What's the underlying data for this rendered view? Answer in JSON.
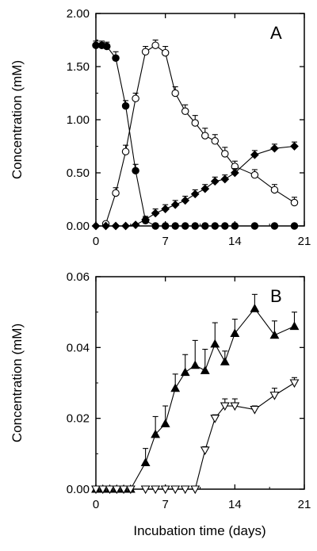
{
  "xlabel": "Incubation time (days)",
  "chart_data": [
    {
      "type": "line",
      "panel_label": "A",
      "ylabel": "Concentration (mM)",
      "xlim": [
        0,
        21
      ],
      "ylim": [
        0,
        2.0
      ],
      "x_ticks": [
        "0",
        "7",
        "14",
        "21"
      ],
      "y_ticks": [
        "0.00",
        "0.50",
        "1.00",
        "1.50",
        "2.00"
      ],
      "x_tick_values": [
        0,
        7,
        14,
        21
      ],
      "y_tick_values": [
        0,
        0.5,
        1.0,
        1.5,
        2.0
      ],
      "series": [
        {
          "marker": "filled-circle",
          "x": [
            0,
            0.6,
            1.1,
            2.0,
            3.0,
            4.0,
            5.0,
            6.0,
            7.0,
            8.0,
            9.0,
            10.0,
            11.0,
            12.0,
            13.0,
            14.0,
            16.0,
            18.0,
            20.0
          ],
          "y": [
            1.7,
            1.7,
            1.69,
            1.58,
            1.13,
            0.52,
            0.05,
            0.0,
            0.0,
            0.0,
            0.0,
            0.0,
            0.0,
            0.0,
            0.0,
            0.0,
            0.0,
            0.0,
            0.0
          ],
          "err": [
            0.04,
            0.04,
            0.04,
            0.06,
            0.05,
            0.06,
            0.03,
            0,
            0,
            0,
            0,
            0,
            0,
            0,
            0,
            0,
            0,
            0,
            0
          ]
        },
        {
          "marker": "open-circle",
          "x": [
            1.0,
            2.0,
            3.0,
            4.0,
            5.0,
            6.0,
            7.0,
            8.0,
            9.0,
            10.0,
            11.0,
            12.0,
            13.0,
            14.0,
            16.0,
            18.0,
            20.0
          ],
          "y": [
            0.02,
            0.31,
            0.7,
            1.2,
            1.64,
            1.7,
            1.63,
            1.25,
            1.08,
            0.97,
            0.85,
            0.8,
            0.68,
            0.56,
            0.48,
            0.34,
            0.22
          ],
          "err": [
            0.02,
            0.05,
            0.06,
            0.05,
            0.05,
            0.05,
            0.06,
            0.06,
            0.06,
            0.07,
            0.07,
            0.06,
            0.06,
            0.05,
            0.05,
            0.05,
            0.05
          ]
        },
        {
          "marker": "filled-diamond",
          "x": [
            0,
            1.0,
            2.0,
            3.0,
            4.0,
            5.0,
            6.0,
            7.0,
            8.0,
            9.0,
            10.0,
            11.0,
            12.0,
            13.0,
            14.0,
            16.0,
            18.0,
            20.0
          ],
          "y": [
            0.0,
            0.0,
            0.0,
            0.0,
            0.01,
            0.06,
            0.12,
            0.16,
            0.2,
            0.24,
            0.3,
            0.35,
            0.42,
            0.44,
            0.5,
            0.67,
            0.73,
            0.75
          ],
          "err": [
            0,
            0,
            0,
            0,
            0,
            0.03,
            0.04,
            0.04,
            0.04,
            0.04,
            0.04,
            0.04,
            0.04,
            0.04,
            0.04,
            0.04,
            0.04,
            0.04
          ]
        }
      ]
    },
    {
      "type": "line",
      "panel_label": "B",
      "ylabel": "Concentration (mM)",
      "xlim": [
        0,
        21
      ],
      "ylim": [
        0,
        0.06
      ],
      "x_ticks": [
        "0",
        "7",
        "14",
        "21"
      ],
      "y_ticks": [
        "0.00",
        "0.02",
        "0.04",
        "0.06"
      ],
      "x_tick_values": [
        0,
        7,
        14,
        21
      ],
      "y_tick_values": [
        0,
        0.02,
        0.04,
        0.06
      ],
      "series": [
        {
          "marker": "filled-triangle-up",
          "x": [
            0,
            0.7,
            1.4,
            2.1,
            2.8,
            3.5,
            5.0,
            6.0,
            7.0,
            8.0,
            9.0,
            10.0,
            11.0,
            12.0,
            13.0,
            14.0,
            16.0,
            18.0,
            20.0
          ],
          "y": [
            0.0,
            0.0,
            0.0,
            0.0,
            0.0,
            0.0,
            0.0075,
            0.0155,
            0.0185,
            0.0285,
            0.033,
            0.035,
            0.0335,
            0.041,
            0.036,
            0.044,
            0.051,
            0.0435,
            0.046
          ],
          "err": [
            0,
            0,
            0,
            0,
            0,
            0,
            0.004,
            0.005,
            0.005,
            0.004,
            0.005,
            0.007,
            0.006,
            0.006,
            0.003,
            0.004,
            0.004,
            0.004,
            0.004
          ]
        },
        {
          "marker": "open-triangle-down",
          "x": [
            0,
            0.7,
            1.4,
            2.1,
            2.8,
            3.5,
            5.0,
            6.0,
            7.0,
            8.0,
            9.0,
            10.0,
            11.0,
            12.0,
            13.0,
            14.0,
            16.0,
            18.0,
            20.0
          ],
          "y": [
            0.0,
            0.0,
            0.0,
            0.0,
            0.0,
            0.0,
            0.0,
            0.0,
            0.0,
            0.0,
            0.0,
            0.0,
            0.011,
            0.02,
            0.0235,
            0.0235,
            0.0225,
            0.0265,
            0.03
          ],
          "err": [
            0,
            0,
            0,
            0,
            0,
            0,
            0,
            0,
            0,
            0,
            0,
            0,
            0.001,
            0.001,
            0.002,
            0.002,
            0.001,
            0.002,
            0.0015
          ]
        }
      ]
    }
  ]
}
